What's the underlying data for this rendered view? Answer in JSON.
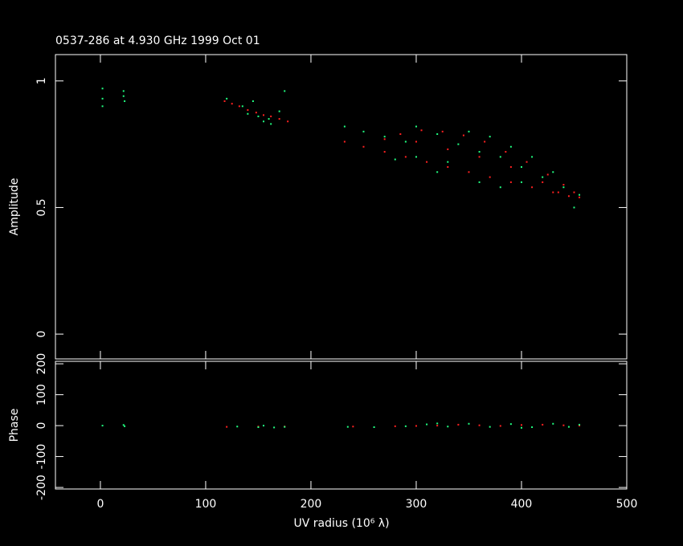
{
  "chart_data": [
    {
      "type": "scatter",
      "title": "0537-286 at 4.930 GHz 1999 Oct 01",
      "ylabel": "Amplitude",
      "xlim": [
        -42.7,
        500
      ],
      "xticks": [
        0,
        100,
        200,
        300,
        400,
        500
      ],
      "ylim": [
        -0.098,
        1.104
      ],
      "yticks": [
        0,
        0.5,
        1
      ],
      "series": [
        {
          "color": "#ff2020",
          "x": [
            118,
            125,
            132,
            140,
            148,
            155,
            162,
            170,
            178,
            232,
            250,
            270,
            290,
            310,
            330,
            350,
            370,
            390,
            410,
            430,
            445,
            455,
            450,
            440,
            425,
            405,
            385,
            365,
            345,
            325,
            305,
            285,
            270,
            300,
            330,
            360,
            390,
            420,
            435
          ],
          "y": [
            0.92,
            0.91,
            0.9,
            0.885,
            0.875,
            0.865,
            0.86,
            0.85,
            0.84,
            0.76,
            0.74,
            0.72,
            0.7,
            0.68,
            0.66,
            0.64,
            0.62,
            0.6,
            0.58,
            0.56,
            0.545,
            0.54,
            0.56,
            0.59,
            0.63,
            0.68,
            0.72,
            0.76,
            0.785,
            0.8,
            0.805,
            0.79,
            0.77,
            0.76,
            0.73,
            0.7,
            0.66,
            0.6,
            0.56
          ]
        },
        {
          "color": "#20ff80",
          "x": [
            2,
            2,
            2,
            22,
            22,
            23,
            120,
            135,
            140,
            145,
            150,
            155,
            160,
            162,
            170,
            175,
            232,
            250,
            270,
            290,
            300,
            320,
            340,
            360,
            380,
            400,
            420,
            440,
            450,
            455,
            300,
            330,
            350,
            370,
            390,
            410,
            430,
            360,
            380,
            400,
            320,
            280
          ],
          "y": [
            0.97,
            0.93,
            0.9,
            0.96,
            0.94,
            0.92,
            0.93,
            0.9,
            0.87,
            0.92,
            0.86,
            0.84,
            0.85,
            0.83,
            0.88,
            0.96,
            0.82,
            0.8,
            0.78,
            0.76,
            0.82,
            0.79,
            0.75,
            0.72,
            0.7,
            0.66,
            0.62,
            0.58,
            0.5,
            0.55,
            0.7,
            0.68,
            0.8,
            0.78,
            0.74,
            0.7,
            0.64,
            0.6,
            0.58,
            0.6,
            0.64,
            0.69
          ]
        }
      ]
    },
    {
      "type": "scatter",
      "ylabel": "Phase",
      "xlabel": "UV radius  (10⁶ λ)",
      "xlim": [
        -42.7,
        500
      ],
      "xticks": [
        0,
        100,
        200,
        300,
        400,
        500
      ],
      "ylim": [
        -205,
        208
      ],
      "yticks": [
        -200,
        -100,
        0,
        100,
        200
      ],
      "series": [
        {
          "color": "#ff2020",
          "x": [
            120,
            150,
            175,
            240,
            280,
            320,
            360,
            400,
            440,
            455,
            300,
            340,
            380,
            420
          ],
          "y": [
            -4,
            -3,
            -3,
            -3,
            -2,
            0,
            1,
            2,
            1,
            0,
            -1,
            3,
            -1,
            3
          ]
        },
        {
          "color": "#20ff80",
          "x": [
            2,
            22,
            23,
            130,
            150,
            155,
            165,
            175,
            235,
            260,
            290,
            310,
            330,
            350,
            370,
            390,
            410,
            430,
            445,
            455,
            320,
            400
          ],
          "y": [
            0,
            2,
            -2,
            -3,
            -5,
            0,
            -6,
            -4,
            -4,
            -5,
            -2,
            4,
            -3,
            6,
            -4,
            5,
            -5,
            6,
            -4,
            3,
            7,
            -7
          ]
        }
      ]
    }
  ]
}
